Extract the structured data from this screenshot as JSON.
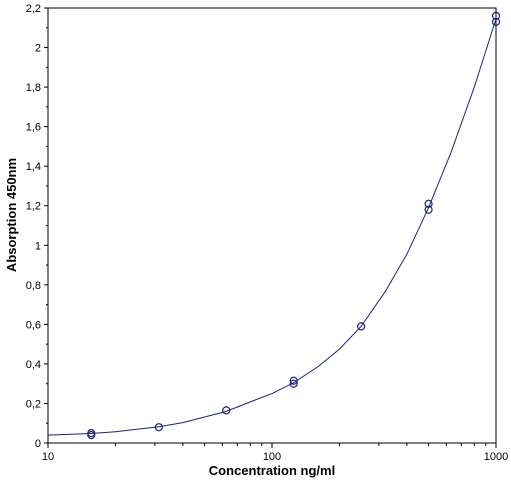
{
  "chart_data": {
    "type": "scatter",
    "title": "",
    "xlabel": "Concentration ng/ml",
    "ylabel": "Absorption 450nm",
    "x_scale": "log",
    "xlim": [
      10,
      1000
    ],
    "ylim": [
      0,
      2.2
    ],
    "x_ticks": [
      10,
      100,
      1000
    ],
    "x_tick_labels": [
      "10",
      "100",
      "1000"
    ],
    "y_ticks": [
      0,
      0.2,
      0.4,
      0.6,
      0.8,
      1,
      1.2,
      1.4,
      1.6,
      1.8,
      2,
      2.2
    ],
    "y_tick_labels": [
      "0",
      "0,2",
      "0,4",
      "0,6",
      "0,8",
      "1",
      "1,2",
      "1,4",
      "1,6",
      "1,8",
      "2",
      "2,2"
    ],
    "grid": false,
    "legend": "none",
    "point_color": "#1a237e",
    "curve_color": "#1a237e",
    "points": [
      {
        "x": 15.6,
        "y": 0.04
      },
      {
        "x": 15.6,
        "y": 0.05
      },
      {
        "x": 31.25,
        "y": 0.08
      },
      {
        "x": 62.5,
        "y": 0.165
      },
      {
        "x": 125,
        "y": 0.3
      },
      {
        "x": 125,
        "y": 0.315
      },
      {
        "x": 250,
        "y": 0.59
      },
      {
        "x": 500,
        "y": 1.18
      },
      {
        "x": 500,
        "y": 1.21
      },
      {
        "x": 1000,
        "y": 2.13
      },
      {
        "x": 1000,
        "y": 2.16
      }
    ],
    "fit_curve": [
      {
        "x": 10,
        "y": 0.04
      },
      {
        "x": 15.6,
        "y": 0.048
      },
      {
        "x": 20,
        "y": 0.057
      },
      {
        "x": 31.25,
        "y": 0.082
      },
      {
        "x": 40,
        "y": 0.103
      },
      {
        "x": 62.5,
        "y": 0.16
      },
      {
        "x": 80,
        "y": 0.208
      },
      {
        "x": 100,
        "y": 0.25
      },
      {
        "x": 125,
        "y": 0.305
      },
      {
        "x": 160,
        "y": 0.385
      },
      {
        "x": 200,
        "y": 0.475
      },
      {
        "x": 250,
        "y": 0.59
      },
      {
        "x": 320,
        "y": 0.765
      },
      {
        "x": 400,
        "y": 0.955
      },
      {
        "x": 500,
        "y": 1.19
      },
      {
        "x": 630,
        "y": 1.47
      },
      {
        "x": 800,
        "y": 1.8
      },
      {
        "x": 1000,
        "y": 2.145
      }
    ]
  }
}
